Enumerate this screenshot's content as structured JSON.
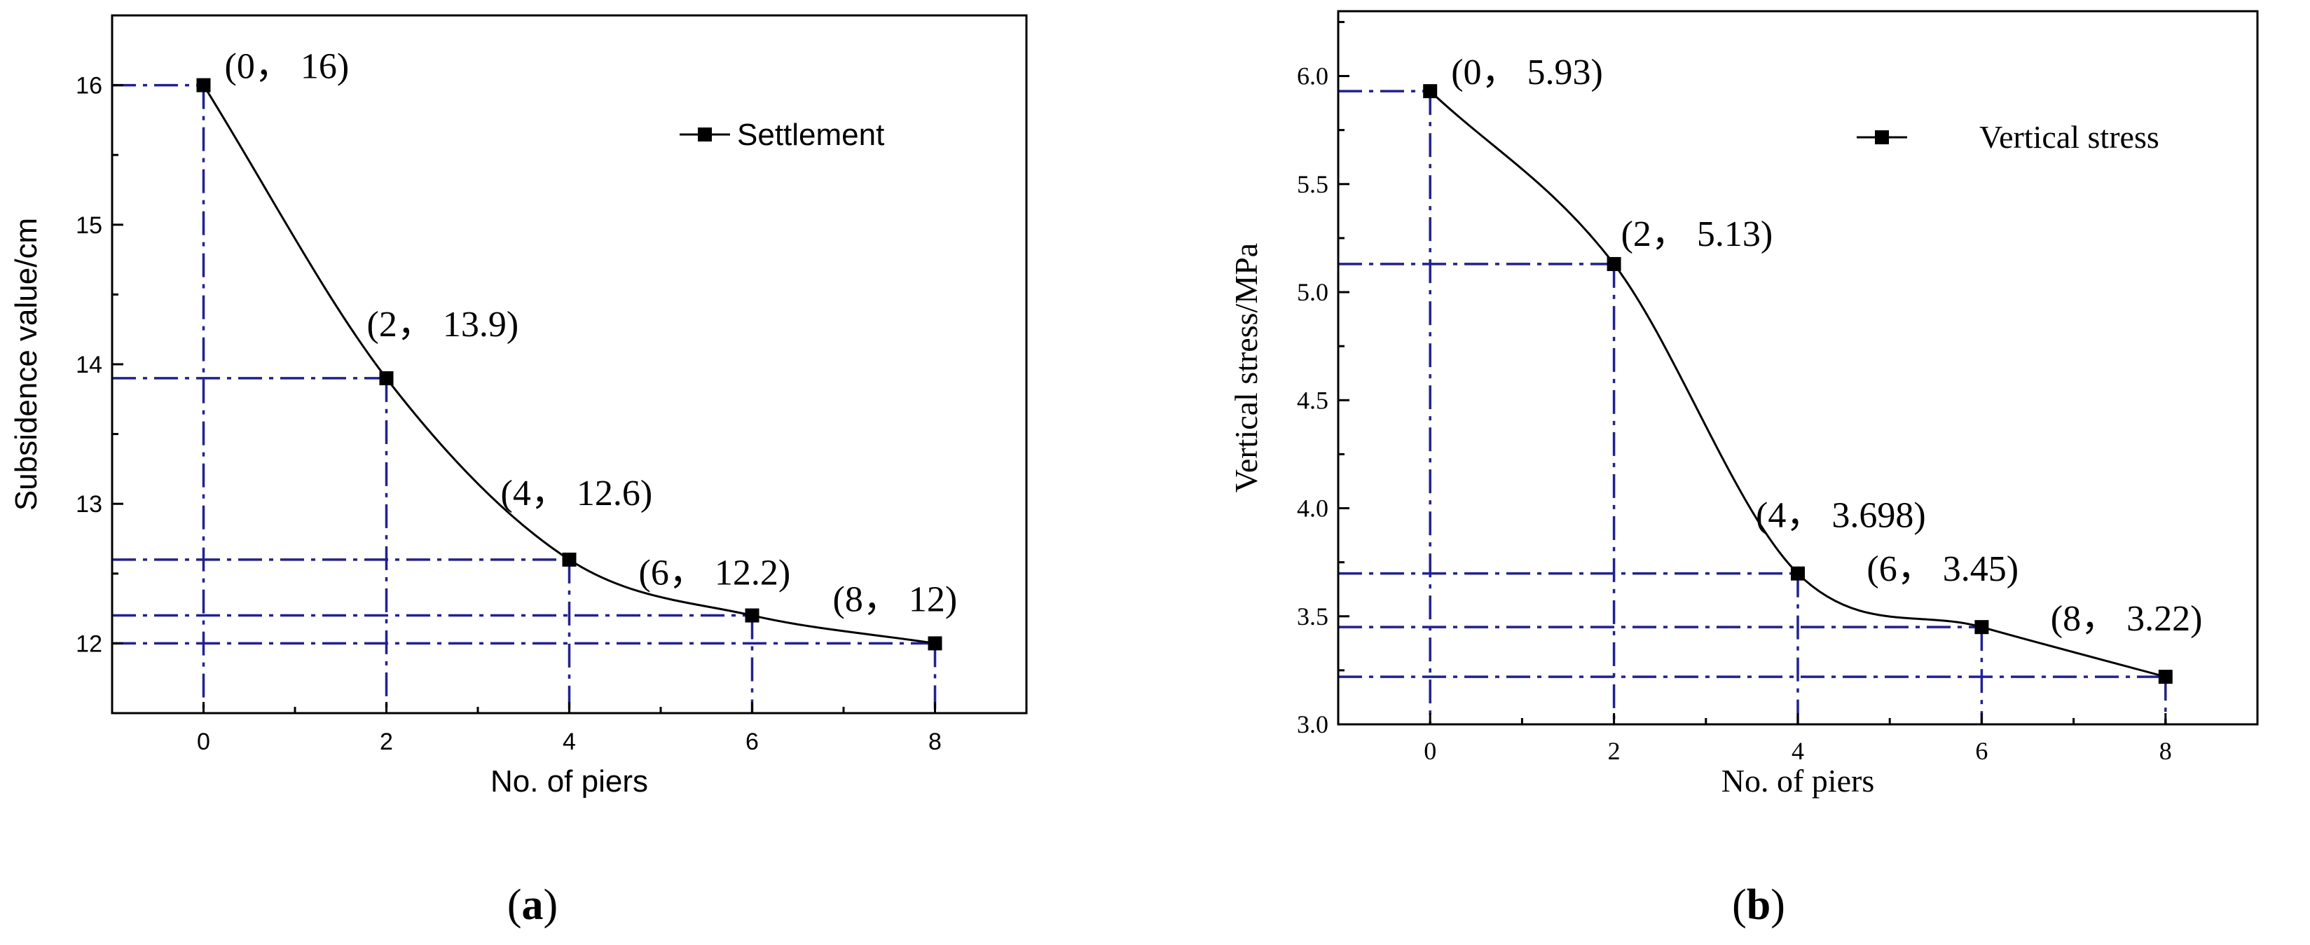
{
  "chart_data": [
    {
      "panel": "(a)",
      "type": "line",
      "xlabel": "No. of piers",
      "ylabel": "Subsidence value/cm",
      "xlim": [
        -1,
        9
      ],
      "ylim": [
        11.5,
        16.5
      ],
      "xticks": [
        0,
        2,
        4,
        6,
        8
      ],
      "yticks": [
        12,
        13,
        14,
        15,
        16
      ],
      "grid": false,
      "legend_position": "top-right",
      "series": [
        {
          "name": "Settlement",
          "color": "#000000",
          "marker": "square",
          "x": [
            0,
            2,
            4,
            6,
            8
          ],
          "y": [
            16,
            13.9,
            12.6,
            12.2,
            12
          ]
        }
      ],
      "annotations": [
        "(0， 16)",
        "(2， 13.9)",
        "(4， 12.6)",
        "(6， 12.2)",
        "(8， 12)"
      ],
      "guide_color": "#1f1fa0"
    },
    {
      "panel": "(b)",
      "type": "line",
      "xlabel": "No. of piers",
      "ylabel": "Vertical stress/MPa",
      "xlim": [
        -1,
        9
      ],
      "ylim": [
        3.0,
        6.3
      ],
      "xticks": [
        0,
        2,
        4,
        6,
        8
      ],
      "yticks": [
        3.0,
        3.5,
        4.0,
        4.5,
        5.0,
        5.5,
        6.0
      ],
      "ytick_labels": [
        "3.0",
        "3.5",
        "4.0",
        "4.5",
        "5.0",
        "5.5",
        "6.0"
      ],
      "grid": false,
      "legend_position": "top-right",
      "series": [
        {
          "name": "Vertical stress",
          "color": "#000000",
          "marker": "square",
          "x": [
            0,
            2,
            4,
            6,
            8
          ],
          "y": [
            5.93,
            5.13,
            3.698,
            3.45,
            3.22
          ]
        }
      ],
      "annotations": [
        "(0， 5.93)",
        "(2， 5.13)",
        "(4， 3.698)",
        "(6， 3.45)",
        "(8， 3.22)"
      ],
      "guide_color": "#1f1fa0"
    }
  ]
}
